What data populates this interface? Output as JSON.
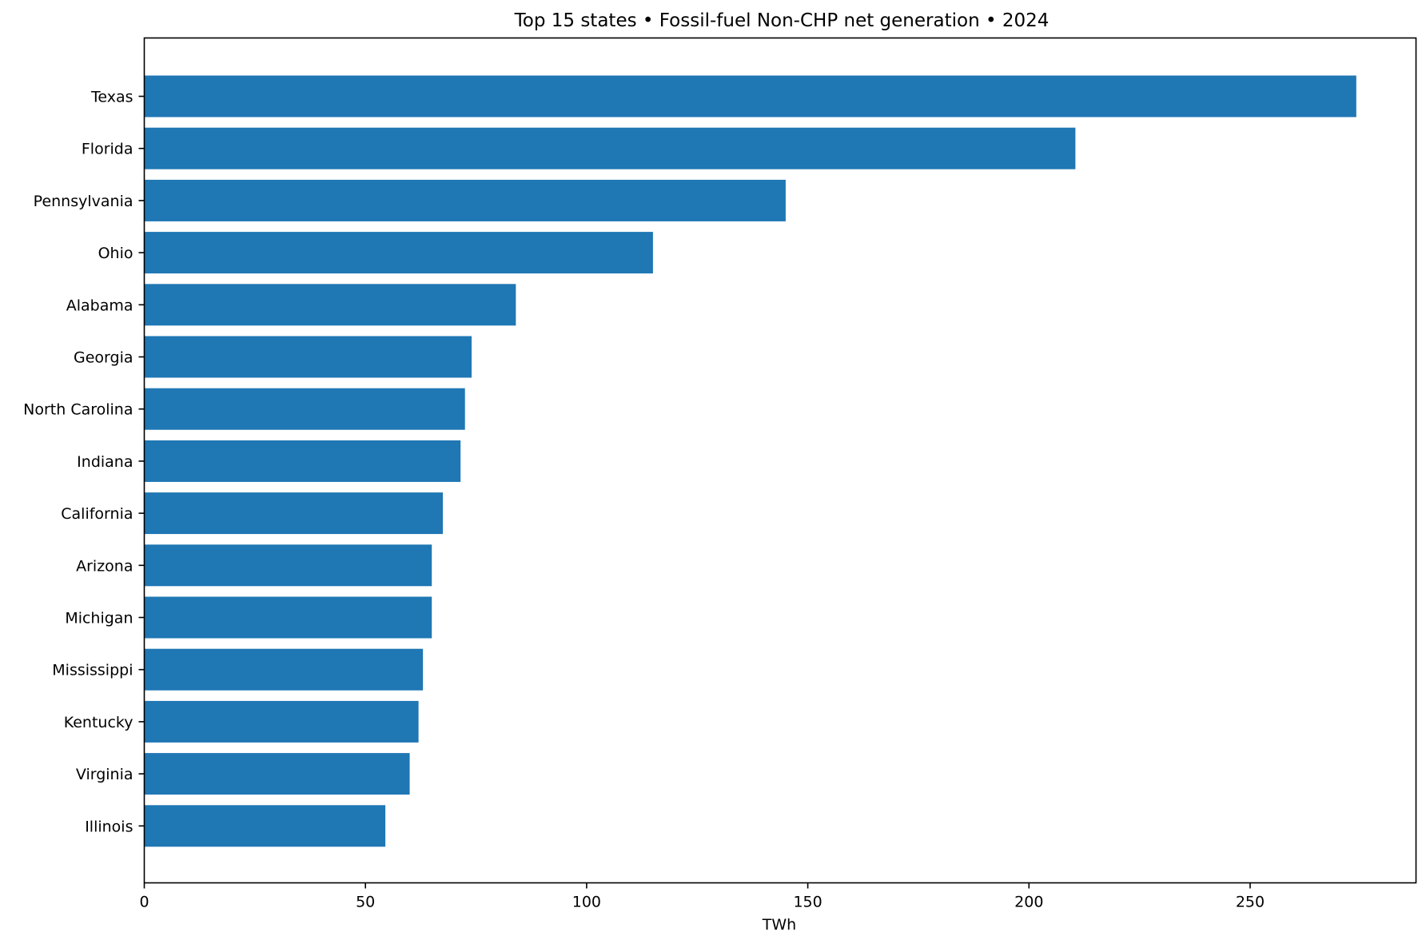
{
  "chart_data": {
    "type": "bar",
    "orientation": "horizontal",
    "title": "Top 15 states • Fossil-fuel Non-CHP net generation • 2024",
    "xlabel": "TWh",
    "ylabel": "",
    "categories": [
      "Texas",
      "Florida",
      "Pennsylvania",
      "Ohio",
      "Alabama",
      "Georgia",
      "North Carolina",
      "Indiana",
      "California",
      "Arizona",
      "Michigan",
      "Mississippi",
      "Kentucky",
      "Virginia",
      "Illinois"
    ],
    "values": [
      274,
      210.5,
      145,
      115,
      84,
      74,
      72.5,
      71.5,
      67.5,
      65,
      65,
      63,
      62,
      60,
      54.5
    ],
    "xlim": [
      0,
      287.5
    ],
    "xticks": [
      "0",
      "50",
      "100",
      "150",
      "200",
      "250"
    ],
    "xtick_values": [
      0,
      50,
      100,
      150,
      200,
      250
    ],
    "grid": false,
    "legend": "none",
    "bar_color": "#1f77b4"
  }
}
